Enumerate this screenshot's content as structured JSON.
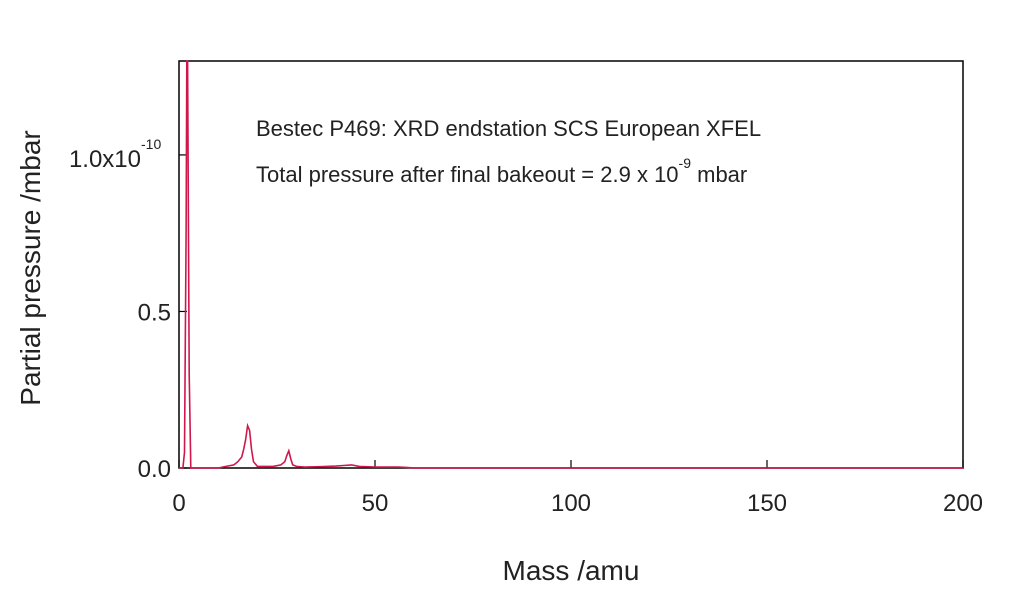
{
  "chart_data": {
    "type": "line",
    "xlabel": "Mass /amu",
    "ylabel": "Partial pressure /mbar",
    "xlim": [
      0,
      200
    ],
    "ylim": [
      0.0,
      1.3
    ],
    "y_multiplier_text": "1.0x10",
    "y_multiplier_exponent": "-10",
    "x_ticks": [
      {
        "value": 0,
        "label": "0"
      },
      {
        "value": 50,
        "label": "50"
      },
      {
        "value": 100,
        "label": "100"
      },
      {
        "value": 150,
        "label": "150"
      },
      {
        "value": 200,
        "label": "200"
      }
    ],
    "y_ticks": [
      {
        "value": 0.0,
        "label": "0.0"
      },
      {
        "value": 0.5,
        "label": "0.5"
      },
      {
        "value": 1.0,
        "label": ""
      }
    ],
    "annotations": {
      "line1": "Bestec P469: XRD endstation SCS European XFEL",
      "line2_pre": "Total pressure after final bakeout = 2.9 x 10",
      "line2_exp": "-9",
      "line2_post": " mbar"
    },
    "colors": {
      "series": "#d0174c",
      "axes": "#000000"
    },
    "series": [
      {
        "x": [
          0,
          1.0,
          1.4,
          1.8,
          2.0,
          2.2,
          2.6,
          3.0,
          4,
          10,
          12,
          14,
          15,
          16,
          16.5,
          17,
          17.5,
          18,
          18.5,
          19,
          20,
          24,
          26,
          27,
          27.5,
          28,
          28.5,
          29,
          30,
          32,
          36,
          40,
          42,
          44,
          46,
          50,
          56,
          58,
          60,
          200
        ],
        "y": [
          0,
          0,
          0.05,
          0.75,
          1.3,
          1.3,
          0.3,
          0,
          0,
          0,
          0.005,
          0.01,
          0.02,
          0.035,
          0.06,
          0.09,
          0.135,
          0.12,
          0.06,
          0.02,
          0.005,
          0.005,
          0.01,
          0.02,
          0.04,
          0.055,
          0.03,
          0.01,
          0.005,
          0.003,
          0.004,
          0.006,
          0.008,
          0.01,
          0.005,
          0.003,
          0.003,
          0.002,
          0,
          0
        ]
      }
    ]
  }
}
